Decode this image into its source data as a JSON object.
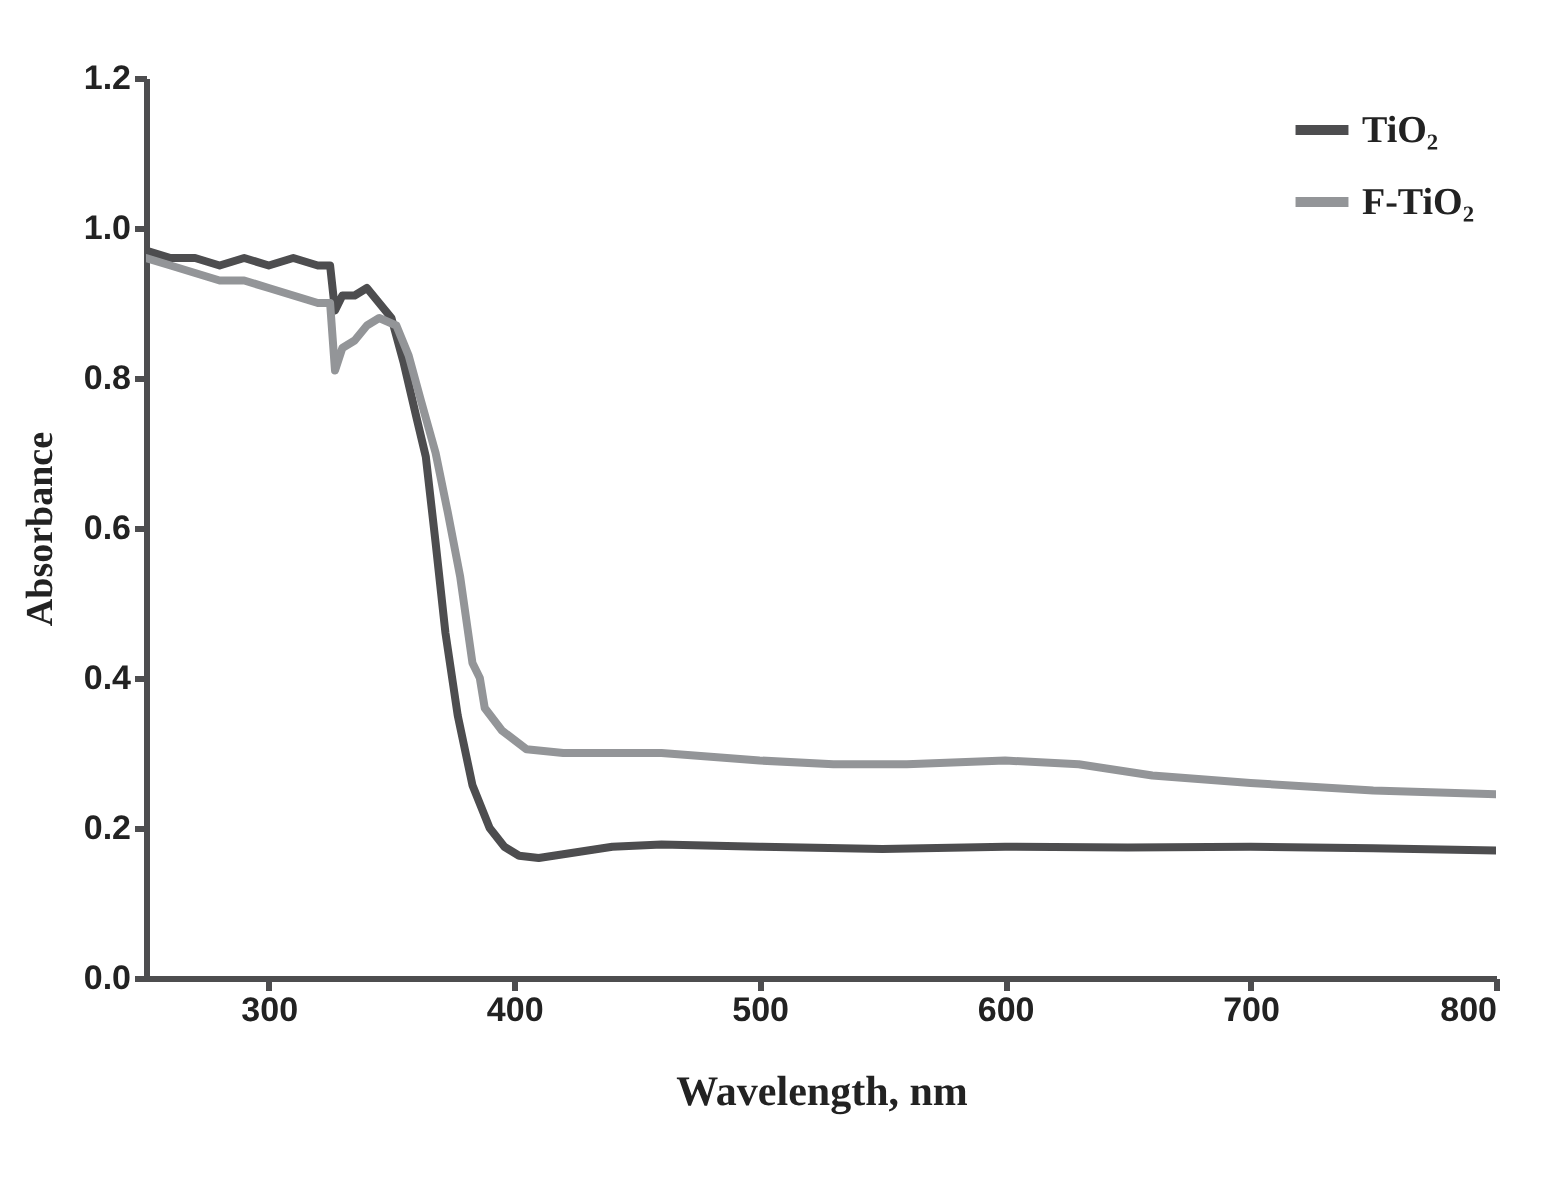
{
  "chart_data": {
    "type": "line",
    "xlabel": "Wavelength, nm",
    "ylabel": "Absorbance",
    "xlim": [
      250,
      800
    ],
    "ylim": [
      0,
      1.2
    ],
    "xticks": [
      300,
      400,
      500,
      600,
      700,
      800
    ],
    "yticks": [
      {
        "value": 0,
        "label": "0.0"
      },
      0.2,
      0.4,
      0.6,
      0.8,
      {
        "value": 1,
        "label": "1.0"
      },
      1.2
    ],
    "grid": false,
    "legend": "top right",
    "line_style": "solid",
    "marker": "none",
    "series": [
      {
        "name": "TiO₂",
        "color": "#4d4d4f",
        "x": [
          250,
          260,
          270,
          280,
          290,
          300,
          310,
          320,
          325,
          327,
          330,
          335,
          340,
          345,
          350,
          355,
          360,
          364,
          368,
          372,
          377,
          383,
          390,
          396,
          402,
          410,
          420,
          440,
          460,
          500,
          550,
          600,
          650,
          700,
          750,
          800
        ],
        "values": [
          0.97,
          0.96,
          0.96,
          0.95,
          0.96,
          0.95,
          0.96,
          0.95,
          0.95,
          0.89,
          0.91,
          0.91,
          0.92,
          0.9,
          0.88,
          0.82,
          0.75,
          0.695,
          0.58,
          0.46,
          0.35,
          0.257,
          0.2,
          0.175,
          0.163,
          0.16,
          0.165,
          0.175,
          0.178,
          0.175,
          0.172,
          0.175,
          0.174,
          0.175,
          0.173,
          0.17
        ]
      },
      {
        "name": "F-TiO₂",
        "color": "#939598",
        "x": [
          250,
          260,
          270,
          280,
          290,
          300,
          310,
          320,
          325,
          327,
          330,
          335,
          340,
          345,
          352,
          357,
          362,
          368,
          373,
          378,
          383,
          386,
          388,
          395,
          405,
          420,
          440,
          460,
          500,
          530,
          560,
          600,
          630,
          660,
          700,
          750,
          800
        ],
        "values": [
          0.96,
          0.95,
          0.94,
          0.93,
          0.93,
          0.92,
          0.91,
          0.9,
          0.9,
          0.81,
          0.84,
          0.85,
          0.87,
          0.88,
          0.87,
          0.83,
          0.77,
          0.7,
          0.62,
          0.535,
          0.42,
          0.4,
          0.36,
          0.33,
          0.305,
          0.3,
          0.3,
          0.3,
          0.29,
          0.285,
          0.285,
          0.29,
          0.285,
          0.27,
          0.26,
          0.25,
          0.245
        ]
      }
    ]
  }
}
